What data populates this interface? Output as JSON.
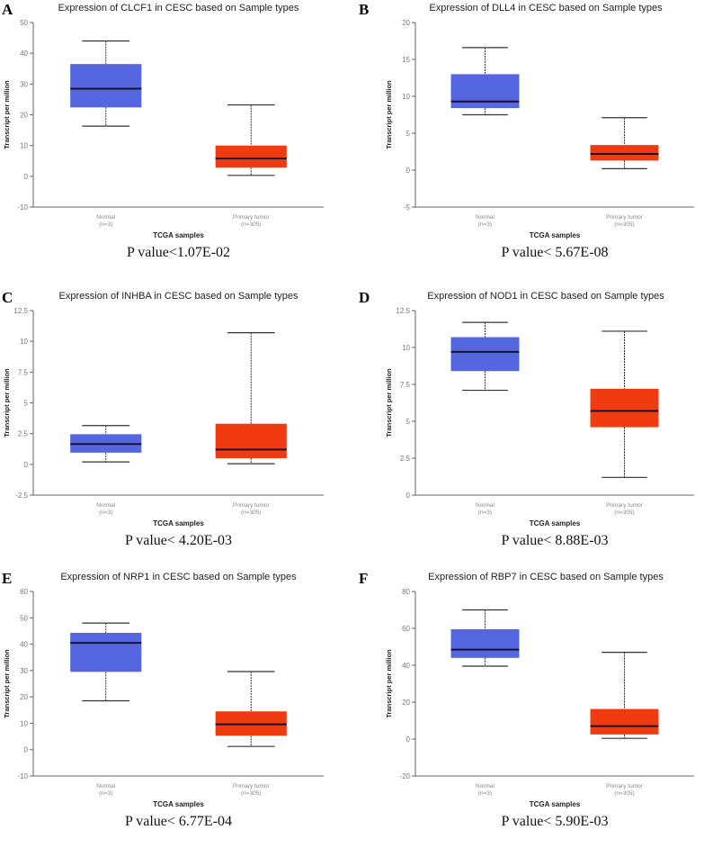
{
  "chart_data": [
    {
      "type": "box",
      "panel": "A",
      "title": "Expression of CLCF1 in CESC based on Sample types",
      "ylabel": "Transcript per million",
      "xlabel": "TCGA samples",
      "yticks": [
        -10,
        0,
        10,
        20,
        30,
        40,
        50
      ],
      "ylim": [
        -10,
        50
      ],
      "categories": [
        {
          "name": "Normal",
          "n": "(n=3)",
          "color": "#5467e0",
          "stats": {
            "min": 16.3,
            "q1": 22.4,
            "median": 28.5,
            "q3": 36.5,
            "max": 44
          }
        },
        {
          "name": "Primary tumor",
          "n": "(n=305)",
          "color": "#f03a10",
          "stats": {
            "min": 0.3,
            "q1": 2.8,
            "median": 5.8,
            "q3": 10,
            "max": 23.2
          }
        }
      ],
      "pvalue": "P value<1.07E-02"
    },
    {
      "type": "box",
      "panel": "B",
      "title": "Expression of DLL4 in CESC based on Sample types",
      "ylabel": "Transcript per million",
      "xlabel": "TCGA samples",
      "yticks": [
        -5,
        0,
        5,
        10,
        15,
        20
      ],
      "ylim": [
        -5,
        20
      ],
      "categories": [
        {
          "name": "Normal",
          "n": "(n=3)",
          "color": "#5467e0",
          "stats": {
            "min": 7.5,
            "q1": 8.4,
            "median": 9.3,
            "q3": 13,
            "max": 16.6
          }
        },
        {
          "name": "Primary tumor",
          "n": "(n=305)",
          "color": "#f03a10",
          "stats": {
            "min": 0.2,
            "q1": 1.3,
            "median": 2.2,
            "q3": 3.4,
            "max": 7.1
          }
        }
      ],
      "pvalue": "P value< 5.67E-08"
    },
    {
      "type": "box",
      "panel": "C",
      "title": "Expression of INHBA in CESC based on Sample types",
      "ylabel": "Transcript per million",
      "xlabel": "TCGA samples",
      "yticks": [
        -2.5,
        0,
        2.5,
        5,
        7.5,
        10,
        12.5
      ],
      "ylim": [
        -2.5,
        12.5
      ],
      "categories": [
        {
          "name": "Normal",
          "n": "(n=3)",
          "color": "#5467e0",
          "stats": {
            "min": 0.2,
            "q1": 0.95,
            "median": 1.65,
            "q3": 2.45,
            "max": 3.15
          }
        },
        {
          "name": "Primary tumor",
          "n": "(n=305)",
          "color": "#f03a10",
          "stats": {
            "min": 0.05,
            "q1": 0.5,
            "median": 1.2,
            "q3": 3.3,
            "max": 10.7
          }
        }
      ],
      "pvalue": "P value< 4.20E-03"
    },
    {
      "type": "box",
      "panel": "D",
      "title": "Expression of NOD1 in CESC based on Sample types",
      "ylabel": "Transcript per million",
      "xlabel": "TCGA samples",
      "yticks": [
        0,
        2.5,
        5,
        7.5,
        10,
        12.5
      ],
      "ylim": [
        0,
        12.5
      ],
      "categories": [
        {
          "name": "Normal",
          "n": "(n=3)",
          "color": "#5467e0",
          "stats": {
            "min": 7.1,
            "q1": 8.4,
            "median": 9.7,
            "q3": 10.7,
            "max": 11.7
          }
        },
        {
          "name": "Primary tumor",
          "n": "(n=305)",
          "color": "#f03a10",
          "stats": {
            "min": 1.2,
            "q1": 4.6,
            "median": 5.7,
            "q3": 7.2,
            "max": 11.1
          }
        }
      ],
      "pvalue": "P value< 8.88E-03"
    },
    {
      "type": "box",
      "panel": "E",
      "title": "Expression of NRP1 in CESC based on Sample types",
      "ylabel": "Transcript per million",
      "xlabel": "TCGA samples",
      "yticks": [
        -10,
        0,
        10,
        20,
        30,
        40,
        50,
        60
      ],
      "ylim": [
        -10,
        60
      ],
      "categories": [
        {
          "name": "Normal",
          "n": "(n=3)",
          "color": "#5467e0",
          "stats": {
            "min": 18.5,
            "q1": 29.5,
            "median": 40.5,
            "q3": 44.3,
            "max": 48
          }
        },
        {
          "name": "Primary tumor",
          "n": "(n=305)",
          "color": "#f03a10",
          "stats": {
            "min": 1.2,
            "q1": 5.3,
            "median": 9.6,
            "q3": 14.5,
            "max": 29.6
          }
        }
      ],
      "pvalue": "P value< 6.77E-04"
    },
    {
      "type": "box",
      "panel": "F",
      "title": "Expression of RBP7 in CESC based on Sample types",
      "ylabel": "Transcript per million",
      "xlabel": "TCGA samples",
      "yticks": [
        -20,
        0,
        20,
        40,
        60,
        80
      ],
      "ylim": [
        -20,
        80
      ],
      "categories": [
        {
          "name": "Normal",
          "n": "(n=3)",
          "color": "#5467e0",
          "stats": {
            "min": 39.5,
            "q1": 44,
            "median": 48.5,
            "q3": 59.5,
            "max": 70
          }
        },
        {
          "name": "Primary tumor",
          "n": "(n=305)",
          "color": "#f03a10",
          "stats": {
            "min": 0.4,
            "q1": 2.5,
            "median": 7,
            "q3": 16.3,
            "max": 47
          }
        }
      ],
      "pvalue": "P value< 5.90E-03"
    }
  ]
}
